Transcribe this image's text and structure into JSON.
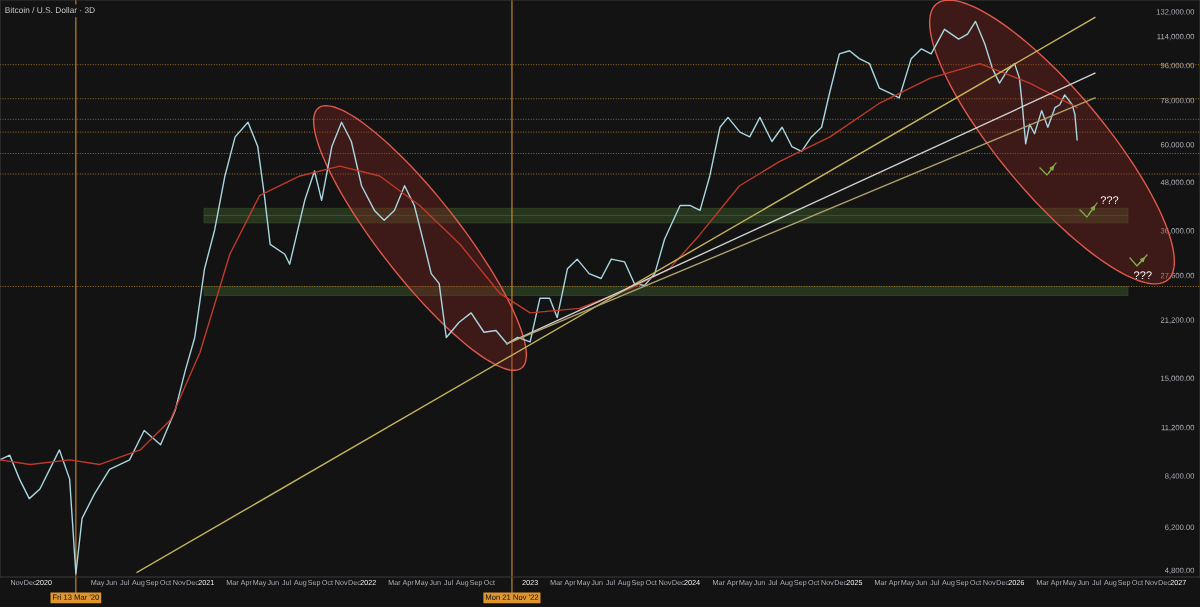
{
  "chart_data": {
    "type": "line",
    "title": "Bitcoin / U.S. Dollar · 3D",
    "log": true,
    "xlim": [
      "2019-09-24",
      "2027-02-19"
    ],
    "ylim": [
      4610,
      141500
    ],
    "yticks": [
      {
        "value": 132000,
        "label": "132,000.00"
      },
      {
        "value": 114000,
        "label": "114,000.00"
      },
      {
        "value": 96000,
        "label": "96,000.00"
      },
      {
        "value": 78000,
        "label": "78,000.00"
      },
      {
        "value": 60000,
        "label": "60,000.00"
      },
      {
        "value": 48000,
        "label": "48,000.00"
      },
      {
        "value": 36000,
        "label": "36,000.00"
      },
      {
        "value": 27600,
        "label": "27,600.00"
      },
      {
        "value": 21200,
        "label": "21,200.00"
      },
      {
        "value": 15000,
        "label": "15,000.00"
      },
      {
        "value": 11200,
        "label": "11,200.00"
      },
      {
        "value": 8400,
        "label": "8,400.00"
      },
      {
        "value": 6200,
        "label": "6,200.00"
      },
      {
        "value": 4800,
        "label": "4,800.00"
      }
    ],
    "xticks": [
      {
        "value": "2019-11-01",
        "label": "Nov"
      },
      {
        "value": "2019-12-01",
        "label": "Dec"
      },
      {
        "value": "2020-01-01",
        "label": "2020"
      },
      {
        "value": "2020-05-01",
        "label": "May"
      },
      {
        "value": "2020-06-01",
        "label": "Jun"
      },
      {
        "value": "2020-07-01",
        "label": "Jul"
      },
      {
        "value": "2020-08-01",
        "label": "Aug"
      },
      {
        "value": "2020-09-01",
        "label": "Sep"
      },
      {
        "value": "2020-10-01",
        "label": "Oct"
      },
      {
        "value": "2020-11-01",
        "label": "Nov"
      },
      {
        "value": "2020-12-01",
        "label": "Dec"
      },
      {
        "value": "2021-01-01",
        "label": "2021"
      },
      {
        "value": "2021-03-01",
        "label": "Mar"
      },
      {
        "value": "2021-04-01",
        "label": "Apr"
      },
      {
        "value": "2021-05-01",
        "label": "May"
      },
      {
        "value": "2021-06-01",
        "label": "Jun"
      },
      {
        "value": "2021-07-01",
        "label": "Jul"
      },
      {
        "value": "2021-08-01",
        "label": "Aug"
      },
      {
        "value": "2021-09-01",
        "label": "Sep"
      },
      {
        "value": "2021-10-01",
        "label": "Oct"
      },
      {
        "value": "2021-11-01",
        "label": "Nov"
      },
      {
        "value": "2021-12-01",
        "label": "Dec"
      },
      {
        "value": "2022-01-01",
        "label": "2022"
      },
      {
        "value": "2022-03-01",
        "label": "Mar"
      },
      {
        "value": "2022-04-01",
        "label": "Apr"
      },
      {
        "value": "2022-05-01",
        "label": "May"
      },
      {
        "value": "2022-06-01",
        "label": "Jun"
      },
      {
        "value": "2022-07-01",
        "label": "Jul"
      },
      {
        "value": "2022-08-01",
        "label": "Aug"
      },
      {
        "value": "2022-09-01",
        "label": "Sep"
      },
      {
        "value": "2022-10-01",
        "label": "Oct"
      },
      {
        "value": "2023-01-01",
        "label": "2023"
      },
      {
        "value": "2023-03-01",
        "label": "Mar"
      },
      {
        "value": "2023-04-01",
        "label": "Apr"
      },
      {
        "value": "2023-05-01",
        "label": "May"
      },
      {
        "value": "2023-06-01",
        "label": "Jun"
      },
      {
        "value": "2023-07-01",
        "label": "Jul"
      },
      {
        "value": "2023-08-01",
        "label": "Aug"
      },
      {
        "value": "2023-09-01",
        "label": "Sep"
      },
      {
        "value": "2023-10-01",
        "label": "Oct"
      },
      {
        "value": "2023-11-01",
        "label": "Nov"
      },
      {
        "value": "2023-12-01",
        "label": "Dec"
      },
      {
        "value": "2024-01-01",
        "label": "2024"
      },
      {
        "value": "2024-03-01",
        "label": "Mar"
      },
      {
        "value": "2024-04-01",
        "label": "Apr"
      },
      {
        "value": "2024-05-01",
        "label": "May"
      },
      {
        "value": "2024-06-01",
        "label": "Jun"
      },
      {
        "value": "2024-07-01",
        "label": "Jul"
      },
      {
        "value": "2024-08-01",
        "label": "Aug"
      },
      {
        "value": "2024-09-01",
        "label": "Sep"
      },
      {
        "value": "2024-10-01",
        "label": "Oct"
      },
      {
        "value": "2024-11-01",
        "label": "Nov"
      },
      {
        "value": "2024-12-01",
        "label": "Dec"
      },
      {
        "value": "2025-01-01",
        "label": "2025"
      },
      {
        "value": "2025-03-01",
        "label": "Mar"
      },
      {
        "value": "2025-04-01",
        "label": "Apr"
      },
      {
        "value": "2025-05-01",
        "label": "May"
      },
      {
        "value": "2025-06-01",
        "label": "Jun"
      },
      {
        "value": "2025-07-01",
        "label": "Jul"
      },
      {
        "value": "2025-08-01",
        "label": "Aug"
      },
      {
        "value": "2025-09-01",
        "label": "Sep"
      },
      {
        "value": "2025-10-01",
        "label": "Oct"
      },
      {
        "value": "2025-11-01",
        "label": "Nov"
      },
      {
        "value": "2025-12-01",
        "label": "Dec"
      },
      {
        "value": "2026-01-01",
        "label": "2026"
      },
      {
        "value": "2026-03-01",
        "label": "Mar"
      },
      {
        "value": "2026-04-01",
        "label": "Apr"
      },
      {
        "value": "2026-05-01",
        "label": "May"
      },
      {
        "value": "2026-06-01",
        "label": "Jun"
      },
      {
        "value": "2026-07-01",
        "label": "Jul"
      },
      {
        "value": "2026-08-01",
        "label": "Aug"
      },
      {
        "value": "2026-09-01",
        "label": "Sep"
      },
      {
        "value": "2026-10-01",
        "label": "Oct"
      },
      {
        "value": "2026-11-01",
        "label": "Nov"
      },
      {
        "value": "2026-12-01",
        "label": "Dec"
      },
      {
        "value": "2027-01-01",
        "label": "2027"
      }
    ],
    "series": [
      {
        "color": "#a9d6e0",
        "x": [
          "2019-09-24",
          "2019-10-16",
          "2019-11-07",
          "2019-11-29",
          "2019-12-23",
          "2020-01-14",
          "2020-02-05",
          "2020-02-28",
          "2020-03-13",
          "2020-03-27",
          "2020-04-24",
          "2020-05-28",
          "2020-07-12",
          "2020-08-14",
          "2020-09-20",
          "2020-10-23",
          "2020-11-14",
          "2020-12-06",
          "2020-12-28",
          "2021-01-20",
          "2021-02-12",
          "2021-03-07",
          "2021-04-05",
          "2021-04-27",
          "2021-05-12",
          "2021-05-25",
          "2021-06-27",
          "2021-07-08",
          "2021-08-11",
          "2021-09-02",
          "2021-09-18",
          "2021-10-11",
          "2021-11-02",
          "2021-11-24",
          "2021-12-17",
          "2022-01-15",
          "2022-02-06",
          "2022-03-01",
          "2022-03-24",
          "2022-04-15",
          "2022-05-07",
          "2022-05-23",
          "2022-06-10",
          "2022-06-26",
          "2022-07-25",
          "2022-08-21",
          "2022-09-19",
          "2022-10-16",
          "2022-11-10",
          "2022-12-04",
          "2023-01-01",
          "2023-01-23",
          "2023-02-14",
          "2023-03-03",
          "2023-03-26",
          "2023-04-17",
          "2023-05-14",
          "2023-06-10",
          "2023-07-03",
          "2023-08-02",
          "2023-08-24",
          "2023-09-16",
          "2023-10-09",
          "2023-10-31",
          "2023-12-05",
          "2023-12-27",
          "2024-01-19",
          "2024-02-10",
          "2024-03-04",
          "2024-03-22",
          "2024-04-18",
          "2024-05-10",
          "2024-06-02",
          "2024-06-29",
          "2024-07-22",
          "2024-08-13",
          "2024-09-04",
          "2024-09-26",
          "2024-10-19",
          "2024-11-06",
          "2024-11-28",
          "2024-12-21",
          "2025-01-12",
          "2025-02-04",
          "2025-02-26",
          "2025-03-21",
          "2025-04-12",
          "2025-05-09",
          "2025-06-01",
          "2025-06-23",
          "2025-07-23",
          "2025-08-24",
          "2025-09-13",
          "2025-10-01",
          "2025-10-22",
          "2025-11-08",
          "2025-11-24",
          "2025-12-12",
          "2025-12-28",
          "2026-01-08",
          "2026-01-15",
          "2026-01-22",
          "2026-01-31",
          "2026-02-11",
          "2026-02-27",
          "2026-03-13",
          "2026-03-29",
          "2026-04-09",
          "2026-04-20",
          "2026-05-07",
          "2026-05-13",
          "2026-05-18"
        ],
        "values": [
          9240,
          9500,
          8240,
          7340,
          7770,
          8730,
          9800,
          8240,
          4700,
          6530,
          7550,
          8730,
          9240,
          11000,
          10100,
          12400,
          15600,
          19100,
          28700,
          36200,
          49800,
          62800,
          68500,
          59300,
          44300,
          33200,
          31300,
          29500,
          43100,
          51300,
          43100,
          59300,
          68500,
          61100,
          47000,
          40600,
          38300,
          40600,
          47000,
          41800,
          33200,
          27900,
          26300,
          19100,
          20900,
          22100,
          19700,
          19900,
          18400,
          19100,
          18600,
          24100,
          24100,
          21500,
          28700,
          30400,
          27900,
          27100,
          30400,
          29900,
          26300,
          26000,
          27900,
          34200,
          41800,
          41800,
          40600,
          49800,
          66500,
          70500,
          64600,
          62800,
          70500,
          61100,
          66500,
          59300,
          57600,
          62800,
          66500,
          81500,
          102800,
          104700,
          99900,
          97000,
          83900,
          81500,
          79200,
          99900,
          105900,
          102800,
          118900,
          112200,
          115500,
          124600,
          109000,
          94300,
          86400,
          93200,
          97000,
          89000,
          74700,
          60300,
          67700,
          64000,
          73400,
          66500,
          74700,
          76000,
          80600,
          76000,
          71800,
          61700
        ]
      },
      {
        "color": "#c0392b",
        "x": [
          "2019-09-24",
          "2019-12-01",
          "2020-02-28",
          "2020-05-06",
          "2020-08-05",
          "2020-10-12",
          "2020-12-18",
          "2021-02-23",
          "2021-05-01",
          "2021-07-31",
          "2021-10-29",
          "2022-01-27",
          "2022-04-27",
          "2022-07-27",
          "2022-10-25",
          "2023-01-01",
          "2023-04-22",
          "2023-08-13",
          "2023-11-11",
          "2024-01-18",
          "2024-04-17",
          "2024-07-17",
          "2024-11-07",
          "2025-02-28",
          "2025-06-21",
          "2025-10-11",
          "2026-01-31",
          "2026-05-18"
        ],
        "values": [
          9240,
          8990,
          9240,
          8990,
          9800,
          11700,
          17500,
          31300,
          44300,
          49800,
          52800,
          49800,
          41800,
          33200,
          24800,
          22100,
          22700,
          25500,
          28700,
          35100,
          47000,
          54300,
          62800,
          76900,
          89000,
          97000,
          86400,
          74700
        ]
      },
      {
        "color": "#c8b45a",
        "x": [
          "2020-07-29",
          "2026-06-27"
        ],
        "values": [
          4740,
          127500
        ]
      },
      {
        "color": "#d0d0d0",
        "x": [
          "2022-11-10",
          "2026-06-27"
        ],
        "values": [
          18400,
          91600
        ]
      },
      {
        "color": "#b0a070",
        "x": [
          "2022-11-10",
          "2026-06-27"
        ],
        "values": [
          18400,
          79200
        ]
      }
    ],
    "ref_lines": [
      {
        "axis": "x",
        "value": "2020-03-13",
        "label": "Fri 13 Mar '20",
        "color": "#d08a2a",
        "line_style": "solid"
      },
      {
        "axis": "x",
        "value": "2022-11-21",
        "label": "Mon 21 Nov '22",
        "color": "#d08a2a",
        "line_style": "solid"
      },
      {
        "axis": "y",
        "value": 96400,
        "color": "#a9782a",
        "line_style": "dotted"
      },
      {
        "axis": "y",
        "value": 78750,
        "color": "#a9782a",
        "line_style": "dotted"
      },
      {
        "axis": "y",
        "value": 69700,
        "color": "#777777",
        "line_style": "dotted"
      },
      {
        "axis": "y",
        "value": 64600,
        "color": "#a9782a",
        "line_style": "dotted"
      },
      {
        "axis": "y",
        "value": 56900,
        "color": "#777777",
        "line_style": "dotted"
      },
      {
        "axis": "y",
        "value": 50400,
        "color": "#a9782a",
        "line_style": "dotted"
      },
      {
        "axis": "y",
        "value": 25850,
        "color": "#a9782a",
        "line_style": "dotted"
      }
    ],
    "bands": [
      {
        "axis": "y",
        "from": 39400,
        "to": 41100,
        "color": "#3f5f2a"
      },
      {
        "axis": "y",
        "from": 37700,
        "to": 39400,
        "color": "#3f5f2a"
      },
      {
        "axis": "y",
        "from": 24500,
        "to": 25850,
        "color": "#3f5f2a"
      }
    ],
    "annotations": [
      {
        "text": "???",
        "x": "2026-07-30",
        "y": 40600
      },
      {
        "text": "???",
        "x": "2026-10-13",
        "y": 26000
      }
    ]
  }
}
